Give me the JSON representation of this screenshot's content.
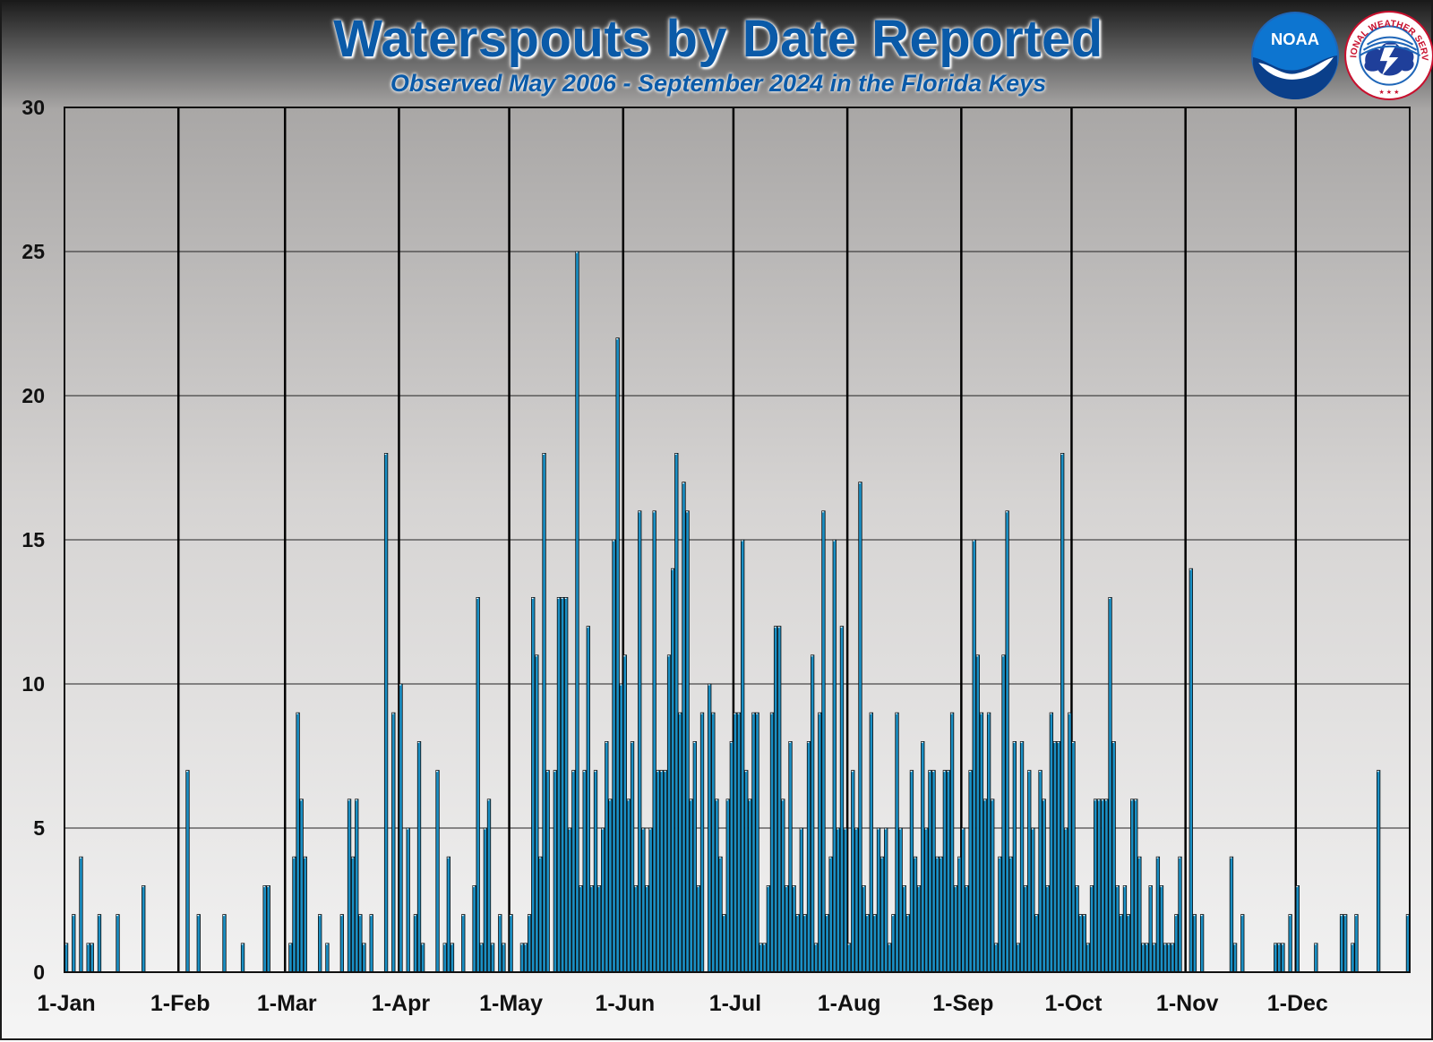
{
  "title": "Waterspouts by Date Reported",
  "subtitle": "Observed May 2006 - September 2024 in the Florida Keys",
  "logos": {
    "noaa_text": "NOAA",
    "nws_text": "NATIONAL WEATHER SERVICE"
  },
  "colors": {
    "bar_fill": "#1a8fc4",
    "bar_stroke": "#0a0a0a",
    "title": "#0a5aa8"
  },
  "chart_data": {
    "type": "bar",
    "title": "Waterspouts by Date Reported",
    "subtitle": "Observed May 2006 - September 2024 in the Florida Keys",
    "xlabel": "",
    "ylabel": "",
    "ylim": [
      0,
      30
    ],
    "yticks": [
      0,
      5,
      10,
      15,
      20,
      25,
      30
    ],
    "month_ticks": [
      "1-Jan",
      "1-Feb",
      "1-Mar",
      "1-Apr",
      "1-May",
      "1-Jun",
      "1-Jul",
      "1-Aug",
      "1-Sep",
      "1-Oct",
      "1-Nov",
      "1-Dec"
    ],
    "grid": true,
    "x_unit": "day of year (1-366)",
    "series": [
      {
        "values": [
          [
            1,
            1
          ],
          [
            3,
            2
          ],
          [
            5,
            4
          ],
          [
            7,
            1
          ],
          [
            8,
            1
          ],
          [
            10,
            2
          ],
          [
            15,
            2
          ],
          [
            22,
            3
          ],
          [
            34,
            7
          ],
          [
            37,
            2
          ],
          [
            44,
            2
          ],
          [
            49,
            1
          ],
          [
            55,
            3
          ],
          [
            56,
            3
          ],
          [
            62,
            1
          ],
          [
            63,
            4
          ],
          [
            64,
            9
          ],
          [
            65,
            6
          ],
          [
            66,
            4
          ],
          [
            70,
            2
          ],
          [
            72,
            1
          ],
          [
            76,
            2
          ],
          [
            78,
            6
          ],
          [
            79,
            4
          ],
          [
            80,
            6
          ],
          [
            81,
            2
          ],
          [
            82,
            1
          ],
          [
            84,
            2
          ],
          [
            88,
            18
          ],
          [
            90,
            9
          ],
          [
            92,
            10
          ],
          [
            94,
            5
          ],
          [
            96,
            2
          ],
          [
            97,
            8
          ],
          [
            98,
            1
          ],
          [
            102,
            7
          ],
          [
            104,
            1
          ],
          [
            105,
            4
          ],
          [
            106,
            1
          ],
          [
            109,
            2
          ],
          [
            112,
            3
          ],
          [
            113,
            13
          ],
          [
            114,
            1
          ],
          [
            115,
            5
          ],
          [
            116,
            6
          ],
          [
            117,
            1
          ],
          [
            119,
            2
          ],
          [
            120,
            1
          ],
          [
            122,
            2
          ],
          [
            125,
            1
          ],
          [
            126,
            1
          ],
          [
            127,
            2
          ],
          [
            128,
            13
          ],
          [
            129,
            11
          ],
          [
            130,
            4
          ],
          [
            131,
            18
          ],
          [
            132,
            7
          ],
          [
            134,
            7
          ],
          [
            135,
            13
          ],
          [
            136,
            13
          ],
          [
            137,
            13
          ],
          [
            138,
            5
          ],
          [
            139,
            7
          ],
          [
            140,
            25
          ],
          [
            141,
            3
          ],
          [
            142,
            7
          ],
          [
            143,
            12
          ],
          [
            144,
            3
          ],
          [
            145,
            7
          ],
          [
            146,
            3
          ],
          [
            147,
            5
          ],
          [
            148,
            8
          ],
          [
            149,
            6
          ],
          [
            150,
            15
          ],
          [
            151,
            22
          ],
          [
            152,
            10
          ],
          [
            153,
            11
          ],
          [
            154,
            6
          ],
          [
            155,
            8
          ],
          [
            156,
            3
          ],
          [
            157,
            16
          ],
          [
            158,
            5
          ],
          [
            159,
            3
          ],
          [
            160,
            5
          ],
          [
            161,
            16
          ],
          [
            162,
            7
          ],
          [
            163,
            7
          ],
          [
            164,
            7
          ],
          [
            165,
            11
          ],
          [
            166,
            14
          ],
          [
            167,
            18
          ],
          [
            168,
            9
          ],
          [
            169,
            17
          ],
          [
            170,
            16
          ],
          [
            171,
            6
          ],
          [
            172,
            8
          ],
          [
            173,
            3
          ],
          [
            174,
            9
          ],
          [
            176,
            10
          ],
          [
            177,
            9
          ],
          [
            178,
            6
          ],
          [
            179,
            4
          ],
          [
            180,
            2
          ],
          [
            181,
            6
          ],
          [
            182,
            8
          ],
          [
            183,
            9
          ],
          [
            184,
            9
          ],
          [
            185,
            15
          ],
          [
            186,
            7
          ],
          [
            187,
            6
          ],
          [
            188,
            9
          ],
          [
            189,
            9
          ],
          [
            190,
            1
          ],
          [
            191,
            1
          ],
          [
            192,
            3
          ],
          [
            193,
            9
          ],
          [
            194,
            12
          ],
          [
            195,
            12
          ],
          [
            196,
            6
          ],
          [
            197,
            3
          ],
          [
            198,
            8
          ],
          [
            199,
            3
          ],
          [
            200,
            2
          ],
          [
            201,
            5
          ],
          [
            202,
            2
          ],
          [
            203,
            8
          ],
          [
            204,
            11
          ],
          [
            205,
            1
          ],
          [
            206,
            9
          ],
          [
            207,
            16
          ],
          [
            208,
            2
          ],
          [
            209,
            4
          ],
          [
            210,
            15
          ],
          [
            211,
            5
          ],
          [
            212,
            12
          ],
          [
            213,
            5
          ],
          [
            214,
            1
          ],
          [
            215,
            7
          ],
          [
            216,
            5
          ],
          [
            217,
            17
          ],
          [
            218,
            3
          ],
          [
            219,
            2
          ],
          [
            220,
            9
          ],
          [
            221,
            2
          ],
          [
            222,
            5
          ],
          [
            223,
            4
          ],
          [
            224,
            5
          ],
          [
            225,
            1
          ],
          [
            226,
            2
          ],
          [
            227,
            9
          ],
          [
            228,
            5
          ],
          [
            229,
            3
          ],
          [
            230,
            2
          ],
          [
            231,
            7
          ],
          [
            232,
            4
          ],
          [
            233,
            3
          ],
          [
            234,
            8
          ],
          [
            235,
            5
          ],
          [
            236,
            7
          ],
          [
            237,
            7
          ],
          [
            238,
            4
          ],
          [
            239,
            4
          ],
          [
            240,
            7
          ],
          [
            241,
            7
          ],
          [
            242,
            9
          ],
          [
            243,
            3
          ],
          [
            244,
            4
          ],
          [
            245,
            5
          ],
          [
            246,
            3
          ],
          [
            247,
            7
          ],
          [
            248,
            15
          ],
          [
            249,
            11
          ],
          [
            250,
            9
          ],
          [
            251,
            6
          ],
          [
            252,
            9
          ],
          [
            253,
            6
          ],
          [
            254,
            1
          ],
          [
            255,
            4
          ],
          [
            256,
            11
          ],
          [
            257,
            16
          ],
          [
            258,
            4
          ],
          [
            259,
            8
          ],
          [
            260,
            1
          ],
          [
            261,
            8
          ],
          [
            262,
            3
          ],
          [
            263,
            7
          ],
          [
            264,
            5
          ],
          [
            265,
            2
          ],
          [
            266,
            7
          ],
          [
            267,
            6
          ],
          [
            268,
            3
          ],
          [
            269,
            9
          ],
          [
            270,
            8
          ],
          [
            271,
            8
          ],
          [
            272,
            18
          ],
          [
            273,
            5
          ],
          [
            274,
            9
          ],
          [
            275,
            8
          ],
          [
            276,
            3
          ],
          [
            277,
            2
          ],
          [
            278,
            2
          ],
          [
            279,
            1
          ],
          [
            280,
            3
          ],
          [
            281,
            6
          ],
          [
            282,
            6
          ],
          [
            283,
            6
          ],
          [
            284,
            6
          ],
          [
            285,
            13
          ],
          [
            286,
            8
          ],
          [
            287,
            3
          ],
          [
            288,
            2
          ],
          [
            289,
            3
          ],
          [
            290,
            2
          ],
          [
            291,
            6
          ],
          [
            292,
            6
          ],
          [
            293,
            4
          ],
          [
            294,
            1
          ],
          [
            295,
            1
          ],
          [
            296,
            3
          ],
          [
            297,
            1
          ],
          [
            298,
            4
          ],
          [
            299,
            3
          ],
          [
            300,
            1
          ],
          [
            301,
            1
          ],
          [
            302,
            1
          ],
          [
            303,
            2
          ],
          [
            304,
            4
          ],
          [
            307,
            14
          ],
          [
            308,
            2
          ],
          [
            310,
            2
          ],
          [
            318,
            4
          ],
          [
            319,
            1
          ],
          [
            321,
            2
          ],
          [
            330,
            1
          ],
          [
            331,
            1
          ],
          [
            332,
            1
          ],
          [
            334,
            2
          ],
          [
            336,
            3
          ],
          [
            341,
            1
          ],
          [
            348,
            2
          ],
          [
            349,
            2
          ],
          [
            351,
            1
          ],
          [
            352,
            2
          ],
          [
            358,
            7
          ],
          [
            366,
            2
          ]
        ]
      }
    ]
  }
}
